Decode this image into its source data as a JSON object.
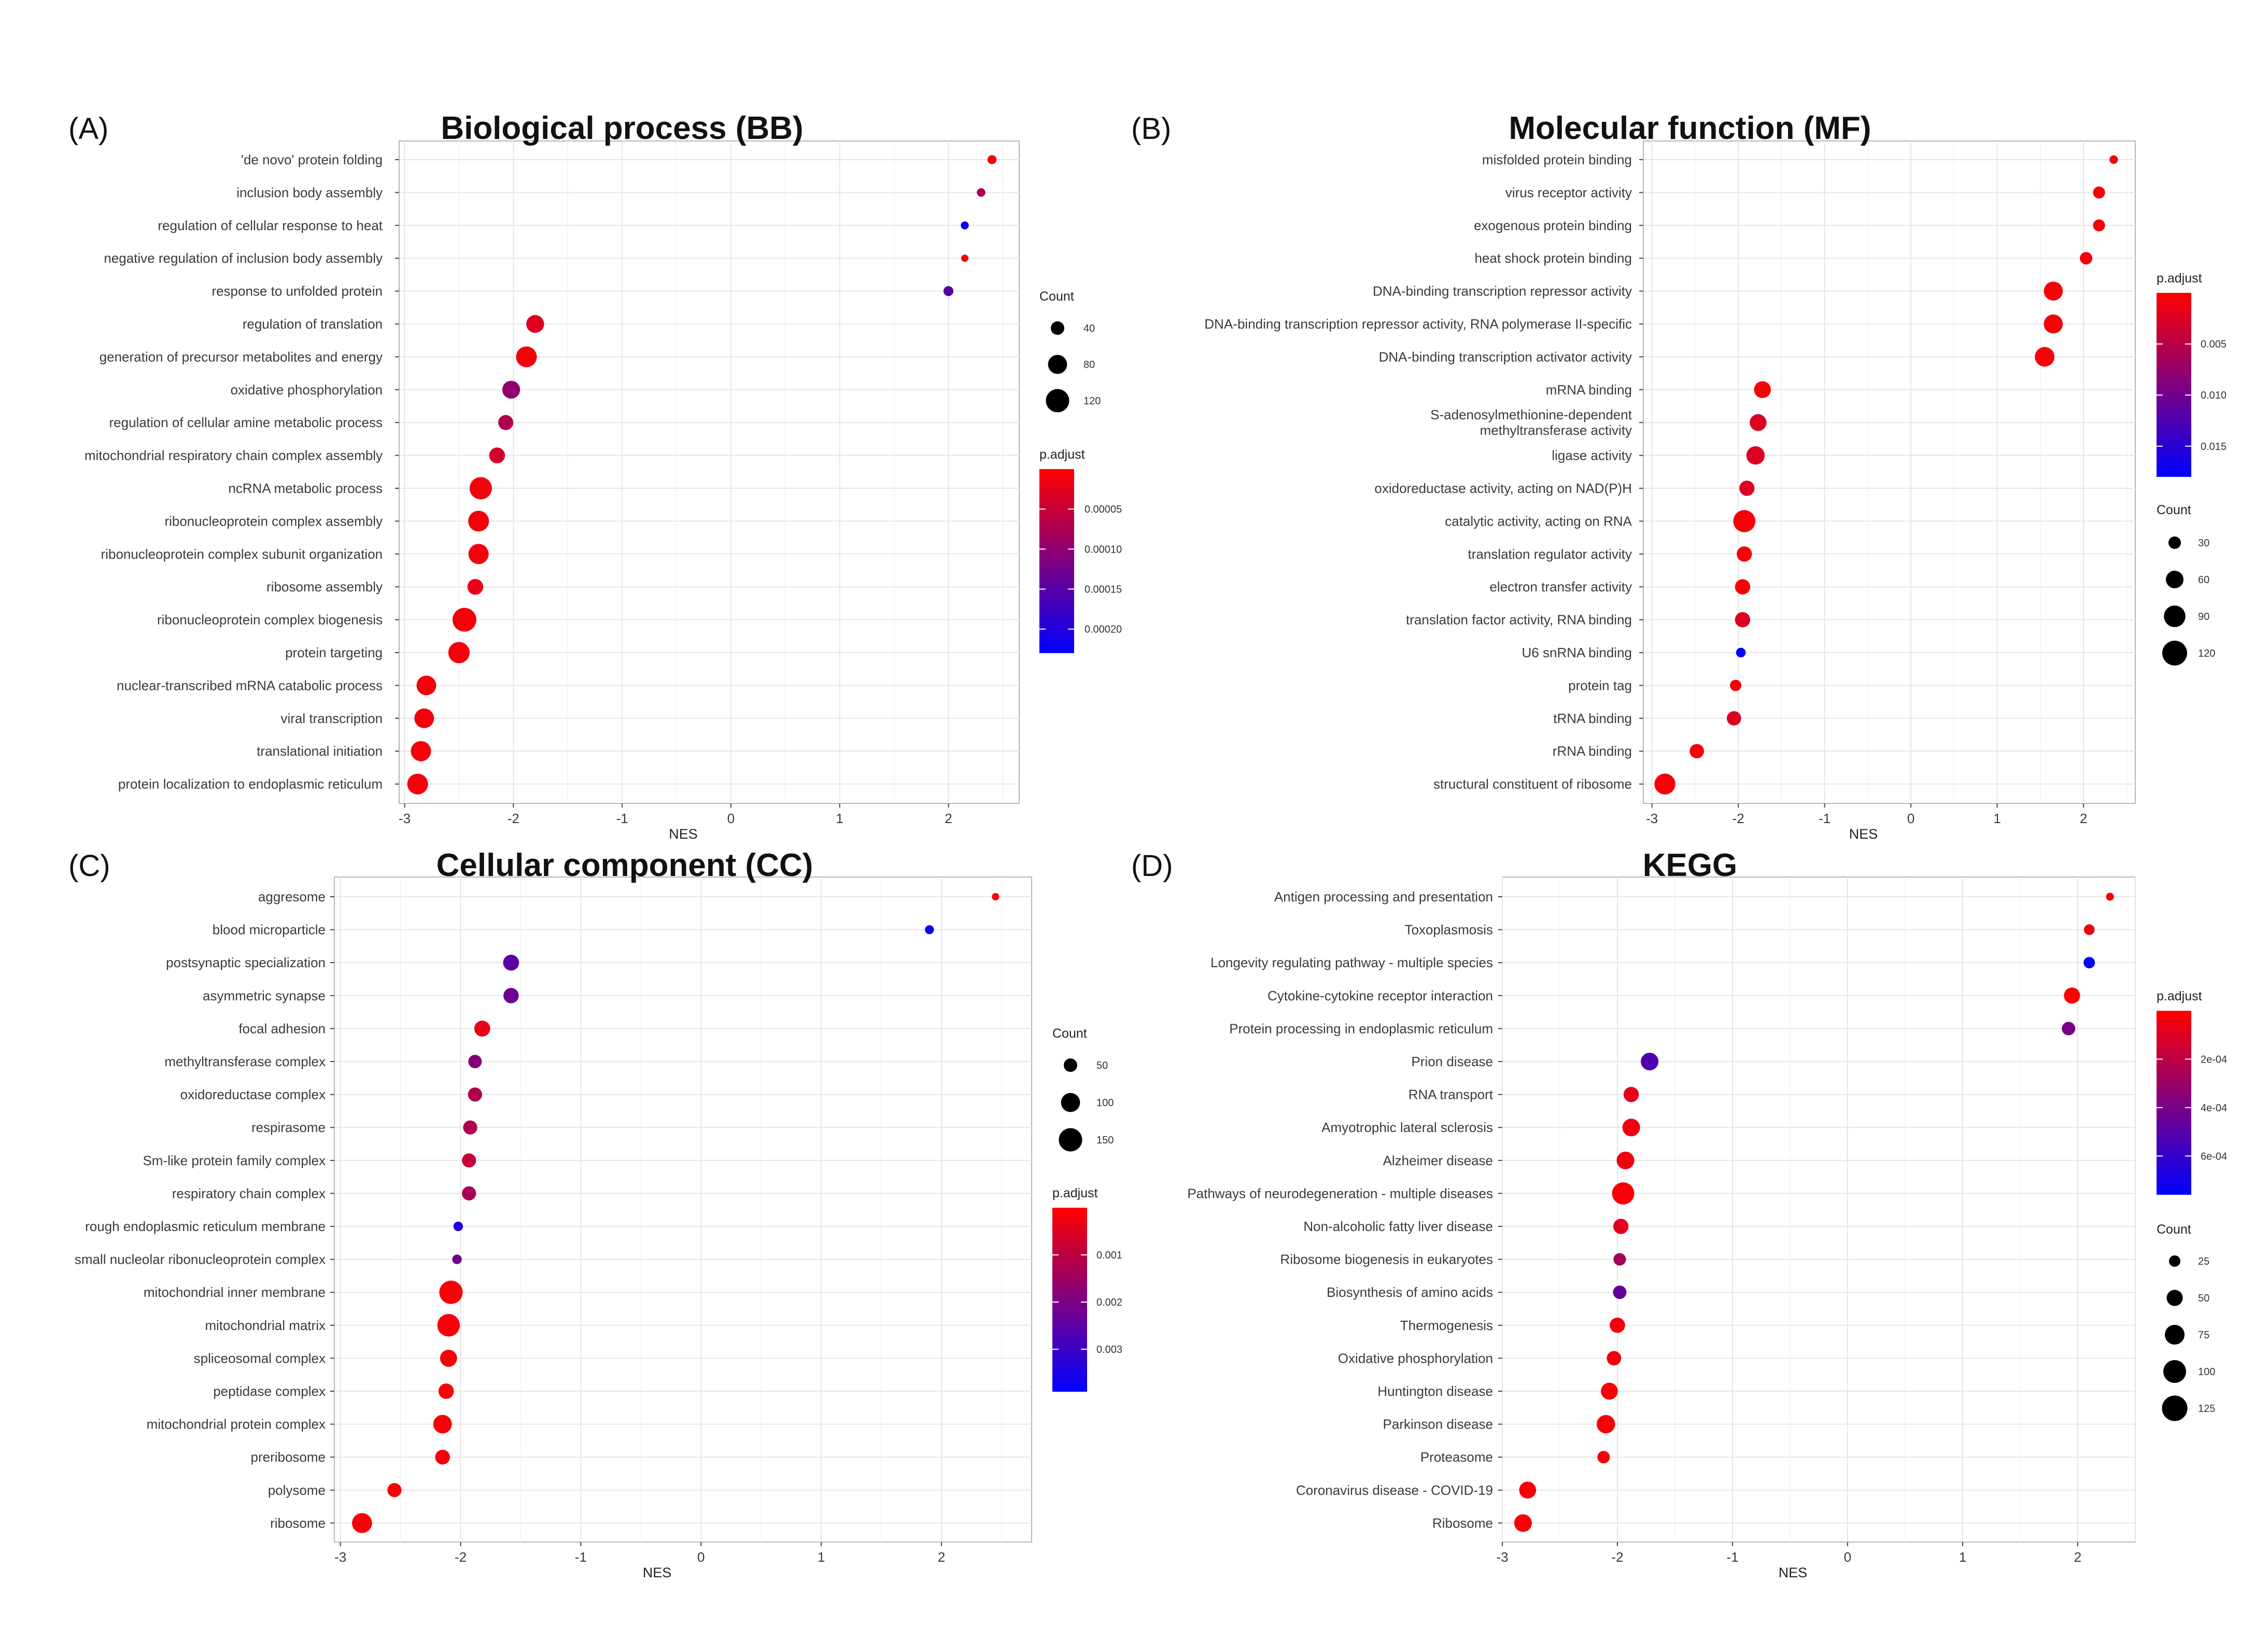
{
  "figure": {
    "size_legend_title": "Count",
    "color_legend_title": "p.adjust",
    "colors": {
      "low_padj": "#ff0000",
      "high_padj": "#0000ff",
      "grid": "#e6e6e6",
      "frame": "#b7b7b7"
    }
  },
  "chart_data": [
    {
      "type": "scatter",
      "panel_label": "(A)",
      "title": "Biological process (BB)",
      "xlabel": "NES",
      "ylabel": "",
      "xlim": [
        -3.05,
        2.65
      ],
      "x_ticks": [
        -3,
        -2,
        -1,
        0,
        1,
        2
      ],
      "x_tick_labels": [
        "-3",
        "-2",
        "-1",
        "0",
        "1",
        "2"
      ],
      "size_legend": {
        "title": "Count",
        "values": [
          40,
          80,
          120
        ],
        "labels": [
          "40",
          "80",
          "120"
        ]
      },
      "color_legend": {
        "title": "p.adjust",
        "min": 0,
        "max": 0.00023,
        "ticks": [
          5e-05,
          0.0001,
          0.00015,
          0.0002
        ],
        "labels": [
          "0.00005",
          "0.00010",
          "0.00015",
          "0.00020"
        ]
      },
      "terms": [
        "'de novo' protein folding",
        "inclusion body assembly",
        "regulation of cellular response to heat",
        "negative regulation of inclusion body assembly",
        "response to unfolded protein",
        "regulation of translation",
        "generation of precursor metabolites and energy",
        "oxidative phosphorylation",
        "regulation of cellular amine metabolic process",
        "mitochondrial respiratory chain complex assembly",
        "ncRNA metabolic process",
        "ribonucleoprotein complex assembly",
        "ribonucleoprotein complex subunit organization",
        "ribosome assembly",
        "ribonucleoprotein complex biogenesis",
        "protein targeting",
        "nuclear-transcribed mRNA catabolic process",
        "viral transcription",
        "translational initiation",
        "protein localization to endoplasmic reticulum"
      ],
      "nes": [
        2.4,
        2.3,
        2.15,
        2.15,
        2.0,
        -1.8,
        -1.88,
        -2.02,
        -2.07,
        -2.15,
        -2.3,
        -2.32,
        -2.32,
        -2.35,
        -2.45,
        -2.5,
        -2.8,
        -2.82,
        -2.85,
        -2.88
      ],
      "count": [
        18,
        16,
        14,
        10,
        22,
        70,
        95,
        70,
        50,
        55,
        110,
        95,
        90,
        55,
        125,
        100,
        85,
        85,
        90,
        95
      ],
      "p_adjust": [
        1e-05,
        8e-05,
        0.00022,
        1e-05,
        0.00015,
        3e-05,
        1e-05,
        0.0001,
        7e-05,
        4e-05,
        1e-05,
        1e-05,
        1e-05,
        2e-05,
        1e-05,
        1e-05,
        1e-05,
        1e-05,
        1e-05,
        1e-05
      ]
    },
    {
      "type": "scatter",
      "panel_label": "(B)",
      "title": "Molecular function (MF)",
      "xlabel": "NES",
      "ylabel": "",
      "xlim": [
        -3.1,
        2.6
      ],
      "x_ticks": [
        -3,
        -2,
        -1,
        0,
        1,
        2
      ],
      "x_tick_labels": [
        "-3",
        "-2",
        "-1",
        "0",
        "1",
        "2"
      ],
      "size_legend": {
        "title": "Count",
        "values": [
          30,
          60,
          90,
          120
        ],
        "labels": [
          "30",
          "60",
          "90",
          "120"
        ]
      },
      "color_legend": {
        "title": "p.adjust",
        "min": 0,
        "max": 0.018,
        "ticks": [
          0.005,
          0.01,
          0.015
        ],
        "labels": [
          "0.005",
          "0.010",
          "0.015"
        ]
      },
      "terms": [
        "misfolded protein binding",
        "virus receptor activity",
        "exogenous protein binding",
        "heat shock protein binding",
        "DNA-binding transcription repressor activity",
        "DNA-binding transcription repressor activity, RNA polymerase II-specific",
        "DNA-binding transcription activator activity",
        "mRNA binding",
        "S-adenosylmethionine-dependent\nmethyltransferase activity",
        "ligase activity",
        "oxidoreductase activity, acting on NAD(P)H",
        "catalytic activity, acting on RNA",
        "translation regulator activity",
        "electron transfer activity",
        "translation factor activity, RNA binding",
        "U6 snRNA binding",
        "protein tag",
        "tRNA binding",
        "rRNA binding",
        "structural constituent of ribosome"
      ],
      "nes": [
        2.35,
        2.18,
        2.18,
        2.03,
        1.65,
        1.65,
        1.55,
        -1.72,
        -1.77,
        -1.8,
        -1.9,
        -1.93,
        -1.93,
        -1.95,
        -1.95,
        -1.97,
        -2.03,
        -2.05,
        -2.48,
        -2.85
      ],
      "count": [
        14,
        28,
        28,
        30,
        70,
        70,
        75,
        55,
        55,
        65,
        45,
        95,
        45,
        45,
        45,
        18,
        25,
        40,
        40,
        85
      ],
      "p_adjust": [
        0.0005,
        0.0005,
        0.0005,
        0.0005,
        0.0005,
        0.0005,
        0.0005,
        0.0005,
        0.0025,
        0.0025,
        0.0025,
        0.0005,
        0.0005,
        0.0005,
        0.0025,
        0.0178,
        0.0005,
        0.0025,
        0.0005,
        0.0005
      ]
    },
    {
      "type": "scatter",
      "panel_label": "(C)",
      "title": "Cellular component (CC)",
      "xlabel": "NES",
      "ylabel": "",
      "xlim": [
        -3.05,
        2.75
      ],
      "x_ticks": [
        -3,
        -2,
        -1,
        0,
        1,
        2
      ],
      "x_tick_labels": [
        "-3",
        "-2",
        "-1",
        "0",
        "1",
        "2"
      ],
      "size_legend": {
        "title": "Count",
        "values": [
          50,
          100,
          150
        ],
        "labels": [
          "50",
          "100",
          "150"
        ]
      },
      "color_legend": {
        "title": "p.adjust",
        "min": 0,
        "max": 0.0039,
        "ticks": [
          0.001,
          0.002,
          0.003
        ],
        "labels": [
          "0.001",
          "0.002",
          "0.003"
        ]
      },
      "terms": [
        "aggresome",
        "blood microparticle",
        "postsynaptic specialization",
        "asymmetric synapse",
        "focal adhesion",
        "methyltransferase complex",
        "oxidoreductase complex",
        "respirasome",
        "Sm-like protein family complex",
        "respiratory chain complex",
        "rough endoplasmic reticulum membrane",
        "small nucleolar ribonucleoprotein complex",
        "mitochondrial inner membrane",
        "mitochondrial matrix",
        "spliceosomal complex",
        "peptidase complex",
        "mitochondrial protein complex",
        "preribosome",
        "polysome",
        "ribosome"
      ],
      "nes": [
        2.45,
        1.9,
        -1.58,
        -1.58,
        -1.82,
        -1.88,
        -1.88,
        -1.92,
        -1.93,
        -1.93,
        -2.02,
        -2.03,
        -2.08,
        -2.1,
        -2.1,
        -2.12,
        -2.15,
        -2.15,
        -2.55,
        -2.82
      ],
      "count": [
        15,
        22,
        70,
        65,
        70,
        50,
        55,
        55,
        55,
        55,
        25,
        25,
        150,
        140,
        80,
        65,
        95,
        60,
        55,
        110
      ],
      "p_adjust": [
        0.0001,
        0.0038,
        0.0025,
        0.0022,
        0.0003,
        0.0019,
        0.0012,
        0.0012,
        0.0009,
        0.0013,
        0.0034,
        0.0022,
        0.0001,
        0.0001,
        0.0001,
        0.0001,
        0.0001,
        0.0001,
        0.0001,
        0.0001
      ]
    },
    {
      "type": "scatter",
      "panel_label": "(D)",
      "title": "KEGG",
      "xlabel": "NES",
      "ylabel": "",
      "xlim": [
        -3.0,
        2.5
      ],
      "x_ticks": [
        -3,
        -2,
        -1,
        0,
        1,
        2
      ],
      "x_tick_labels": [
        "-3",
        "-2",
        "-1",
        "0",
        "1",
        "2"
      ],
      "size_legend": {
        "title": "Count",
        "values": [
          25,
          50,
          75,
          100,
          125
        ],
        "labels": [
          "25",
          "50",
          "75",
          "100",
          "125"
        ]
      },
      "color_legend": {
        "title": "p.adjust",
        "min": 0,
        "max": 0.00076,
        "ticks": [
          0.0002,
          0.0004,
          0.0006
        ],
        "labels": [
          "2e-04",
          "4e-04",
          "6e-04"
        ]
      },
      "terms": [
        "Antigen processing and presentation",
        "Toxoplasmosis",
        "Longevity regulating pathway - multiple species",
        "Cytokine-cytokine receptor interaction",
        "Protein processing in endoplasmic reticulum",
        "Prion disease",
        "RNA transport",
        "Amyotrophic lateral sclerosis",
        "Alzheimer disease",
        "Pathways of neurodegeneration - multiple diseases",
        "Non-alcoholic fatty liver disease",
        "Ribosome biogenesis in eukaryotes",
        "Biosynthesis of amino acids",
        "Thermogenesis",
        "Oxidative phosphorylation",
        "Huntington disease",
        "Parkinson disease",
        "Proteasome",
        "Coronavirus disease - COVID-19",
        "Ribosome"
      ],
      "nes": [
        2.28,
        2.1,
        2.1,
        1.95,
        1.92,
        -1.72,
        -1.88,
        -1.88,
        -1.93,
        -1.95,
        -1.97,
        -1.98,
        -1.98,
        -2.0,
        -2.03,
        -2.07,
        -2.1,
        -2.12,
        -2.78,
        -2.82
      ],
      "count": [
        12,
        22,
        25,
        50,
        35,
        60,
        45,
        60,
        60,
        95,
        45,
        30,
        35,
        45,
        40,
        55,
        65,
        30,
        55,
        60
      ],
      "p_adjust": [
        3e-05,
        5e-05,
        0.00075,
        1e-05,
        0.0004,
        0.00052,
        8e-05,
        5e-05,
        5e-05,
        2e-05,
        8e-05,
        0.00028,
        0.00046,
        3e-05,
        4e-05,
        2e-05,
        2e-05,
        3e-05,
        2e-05,
        2e-05
      ]
    }
  ]
}
